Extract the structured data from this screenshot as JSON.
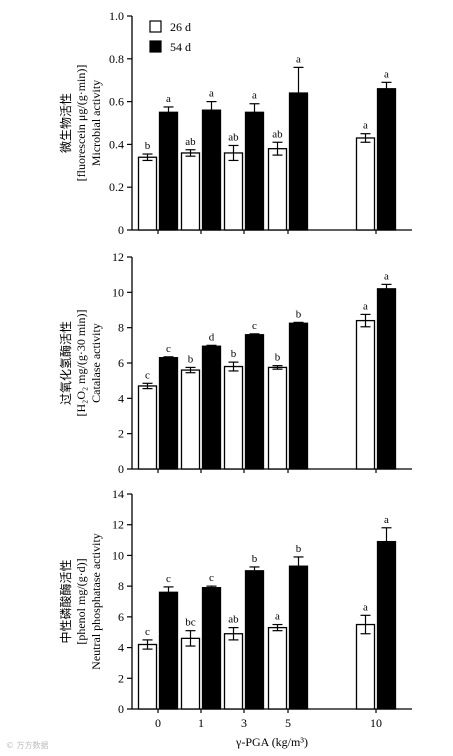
{
  "chart_data": [
    {
      "type": "bar",
      "categories": [
        "0",
        "1",
        "3",
        "5",
        "10"
      ],
      "ylabel": [
        "微生物活性",
        "[fluorescein μg/(g·min)]",
        "Microbial activity"
      ],
      "ylim": [
        0,
        1.0
      ],
      "yticks": [
        "0",
        "0.2",
        "0.4",
        "0.6",
        "0.8",
        "1.0"
      ],
      "ytick_values": [
        0,
        0.2,
        0.4,
        0.6,
        0.8,
        1.0
      ],
      "legend": {
        "placement": "top-left",
        "entries": [
          "26 d",
          "54 d"
        ]
      },
      "series": [
        {
          "name": "26 d",
          "color": "#ffffff",
          "values": [
            0.34,
            0.36,
            0.36,
            0.38,
            0.43
          ],
          "errors": [
            0.015,
            0.015,
            0.035,
            0.03,
            0.02
          ],
          "labels": [
            "b",
            "ab",
            "ab",
            "ab",
            "a"
          ]
        },
        {
          "name": "54 d",
          "color": "#000000",
          "values": [
            0.55,
            0.56,
            0.55,
            0.64,
            0.66
          ],
          "errors": [
            0.025,
            0.04,
            0.04,
            0.12,
            0.03
          ],
          "labels": [
            "a",
            "a",
            "a",
            "a",
            "a"
          ]
        }
      ]
    },
    {
      "type": "bar",
      "categories": [
        "0",
        "1",
        "3",
        "5",
        "10"
      ],
      "ylabel": [
        "过氧化氢酶活性",
        "[H₂O₂ mg/(g·30 min)]",
        "Catalase activity"
      ],
      "ylim": [
        0,
        12
      ],
      "yticks": [
        "0",
        "2",
        "4",
        "6",
        "8",
        "10",
        "12"
      ],
      "ytick_values": [
        0,
        2,
        4,
        6,
        8,
        10,
        12
      ],
      "series": [
        {
          "name": "26 d",
          "color": "#ffffff",
          "values": [
            4.7,
            5.6,
            5.8,
            5.75,
            8.4
          ],
          "errors": [
            0.15,
            0.15,
            0.25,
            0.1,
            0.35
          ],
          "labels": [
            "c",
            "b",
            "b",
            "b",
            "a"
          ]
        },
        {
          "name": "54 d",
          "color": "#000000",
          "values": [
            6.3,
            6.95,
            7.6,
            8.25,
            10.2
          ],
          "errors": [
            0.05,
            0.05,
            0.05,
            0.05,
            0.25
          ],
          "labels": [
            "c",
            "d",
            "c",
            "b",
            "a"
          ]
        }
      ]
    },
    {
      "type": "bar",
      "categories": [
        "0",
        "1",
        "3",
        "5",
        "10"
      ],
      "xlabel": "γ-PGA (kg/m³)",
      "ylabel": [
        "中性磷酸酶活性",
        "[phenol mg/(g·d)]",
        "Neutral phosphatase activity"
      ],
      "ylim": [
        0,
        14
      ],
      "yticks": [
        "0",
        "2",
        "4",
        "6",
        "8",
        "10",
        "12",
        "14"
      ],
      "ytick_values": [
        0,
        2,
        4,
        6,
        8,
        10,
        12,
        14
      ],
      "series": [
        {
          "name": "26 d",
          "color": "#ffffff",
          "values": [
            4.2,
            4.6,
            4.9,
            5.3,
            5.5
          ],
          "errors": [
            0.3,
            0.5,
            0.4,
            0.2,
            0.6
          ],
          "labels": [
            "c",
            "bc",
            "ab",
            "a",
            "a"
          ]
        },
        {
          "name": "54 d",
          "color": "#000000",
          "values": [
            7.6,
            7.9,
            9.0,
            9.3,
            10.9
          ],
          "errors": [
            0.35,
            0.1,
            0.25,
            0.6,
            0.9
          ],
          "labels": [
            "c",
            "c",
            "b",
            "b",
            "a"
          ]
        }
      ]
    }
  ],
  "watermark": "© 万方数据"
}
